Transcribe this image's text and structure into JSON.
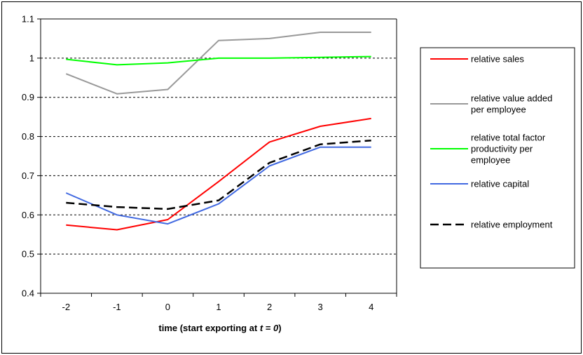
{
  "chart_data": {
    "type": "line",
    "title": "",
    "xlabel": {
      "prefix": "time (start exporting at ",
      "italic_var": "t",
      "mid": " = ",
      "italic_val": "0",
      "suffix": ")"
    },
    "ylabel": "",
    "x": [
      -2,
      -1,
      0,
      1,
      2,
      3,
      4
    ],
    "x_tick_labels": [
      "-2",
      "-1",
      "0",
      "1",
      "2",
      "3",
      "4"
    ],
    "ylim": [
      0.4,
      1.1
    ],
    "y_ticks": [
      0.4,
      0.5,
      0.6,
      0.7,
      0.8,
      0.9,
      1.0,
      1.1
    ],
    "y_tick_labels": [
      "0.4",
      "0.5",
      "0.6",
      "0.7",
      "0.8",
      "0.9",
      "1",
      "1.1"
    ],
    "grid": "horizontal dashed",
    "legend_position": "right",
    "series": [
      {
        "name": "relative sales",
        "legend_lines": [
          "relative sales"
        ],
        "color": "#ff0000",
        "dash": "solid",
        "values": [
          0.574,
          0.562,
          0.588,
          0.685,
          0.786,
          0.826,
          0.846
        ]
      },
      {
        "name": "relative value added per employee",
        "legend_lines": [
          "relative value added",
          "per employee"
        ],
        "color": "#999999",
        "dash": "solid",
        "values": [
          0.96,
          0.909,
          0.92,
          1.045,
          1.05,
          1.066,
          1.066
        ]
      },
      {
        "name": "relative total factor productivity per employee",
        "legend_lines": [
          "relative total factor",
          "productivity per",
          "employee"
        ],
        "color": "#00ff00",
        "dash": "solid",
        "values": [
          0.997,
          0.983,
          0.988,
          1.0,
          1.0,
          1.002,
          1.004
        ]
      },
      {
        "name": "relative capital",
        "legend_lines": [
          "relative capital"
        ],
        "color": "#4169e1",
        "dash": "solid",
        "values": [
          0.656,
          0.6,
          0.577,
          0.628,
          0.725,
          0.773,
          0.773
        ]
      },
      {
        "name": "relative employment",
        "legend_lines": [
          "relative employment"
        ],
        "color": "#000000",
        "dash": "dashed",
        "values": [
          0.631,
          0.62,
          0.615,
          0.637,
          0.733,
          0.78,
          0.79
        ]
      }
    ]
  }
}
